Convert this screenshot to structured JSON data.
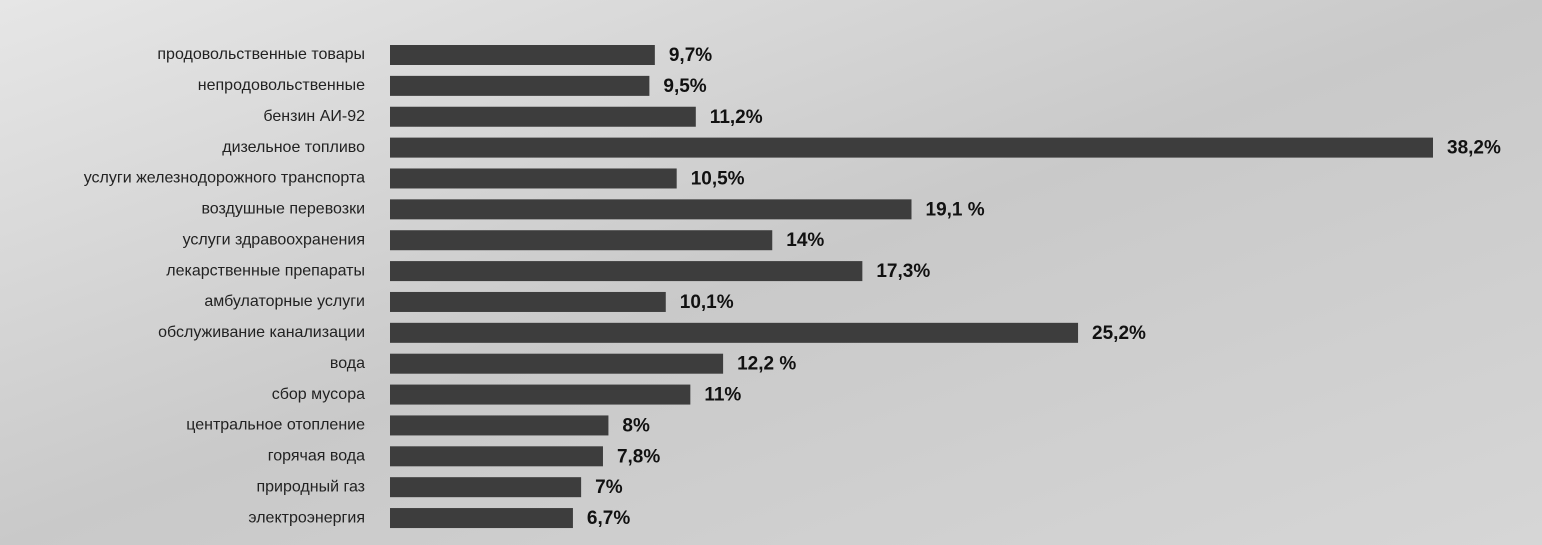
{
  "chart_data": {
    "type": "bar",
    "orientation": "horizontal",
    "color": "#3d3d3d",
    "categories": [
      "продовольственные товары",
      "непродовольственные",
      "бензин АИ-92",
      "дизельное топливо",
      "услуги железнодорожного транспорта",
      "воздушные перевозки",
      "услуги здравоохранения",
      "лекарственные препараты",
      "амбулаторные услуги",
      "обслуживание канализации",
      "вода",
      "сбор мусора",
      "центральное отопление",
      "горячая вода",
      "природный газ",
      "электроэнергия"
    ],
    "values": [
      9.7,
      9.5,
      11.2,
      38.2,
      10.5,
      19.1,
      14,
      17.3,
      10.1,
      25.2,
      12.2,
      11,
      8,
      7.8,
      7,
      6.7
    ],
    "value_labels": [
      "9,7%",
      "9,5%",
      "11,2%",
      "38,2%",
      "10,5%",
      "19,1 %",
      "14%",
      "17,3%",
      "10,1%",
      "25,2%",
      "12,2 %",
      "11%",
      "8%",
      "7,8%",
      "7%",
      "6,7%"
    ]
  }
}
